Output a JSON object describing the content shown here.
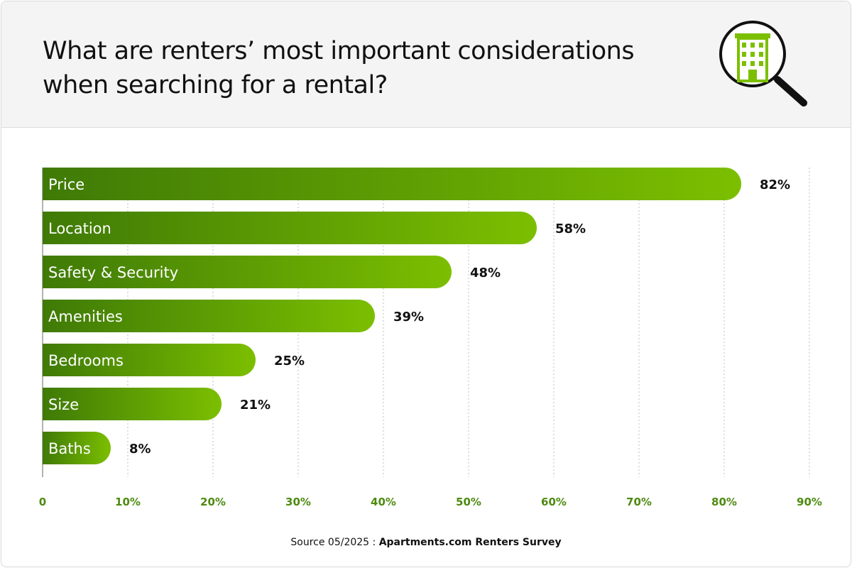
{
  "header": {
    "title": "What are renters’ most important considerations when searching for a rental?",
    "icon": "building-magnifier-icon"
  },
  "colors": {
    "bar_start": "#3f7a06",
    "bar_end": "#7cbf00",
    "tick_text": "#4e8a10",
    "grid": "#bfbfbf",
    "header_bg": "#f4f4f4"
  },
  "chart_data": {
    "type": "bar",
    "orientation": "horizontal",
    "categories": [
      "Price",
      "Location",
      "Safety & Security",
      "Amenities",
      "Bedrooms",
      "Size",
      "Baths"
    ],
    "values": [
      82,
      58,
      48,
      39,
      25,
      21,
      8
    ],
    "value_labels": [
      "82%",
      "58%",
      "48%",
      "39%",
      "25%",
      "21%",
      "8%"
    ],
    "xlim": [
      0,
      90
    ],
    "ticks": [
      0,
      10,
      20,
      30,
      40,
      50,
      60,
      70,
      80,
      90
    ],
    "tick_labels": [
      "0",
      "10%",
      "20%",
      "30%",
      "40%",
      "50%",
      "60%",
      "70%",
      "80%",
      "90%"
    ],
    "grid": "vertical dotted"
  },
  "footer": {
    "prefix": "Source 05/2025 : ",
    "source": "Apartments.com Renters Survey"
  }
}
